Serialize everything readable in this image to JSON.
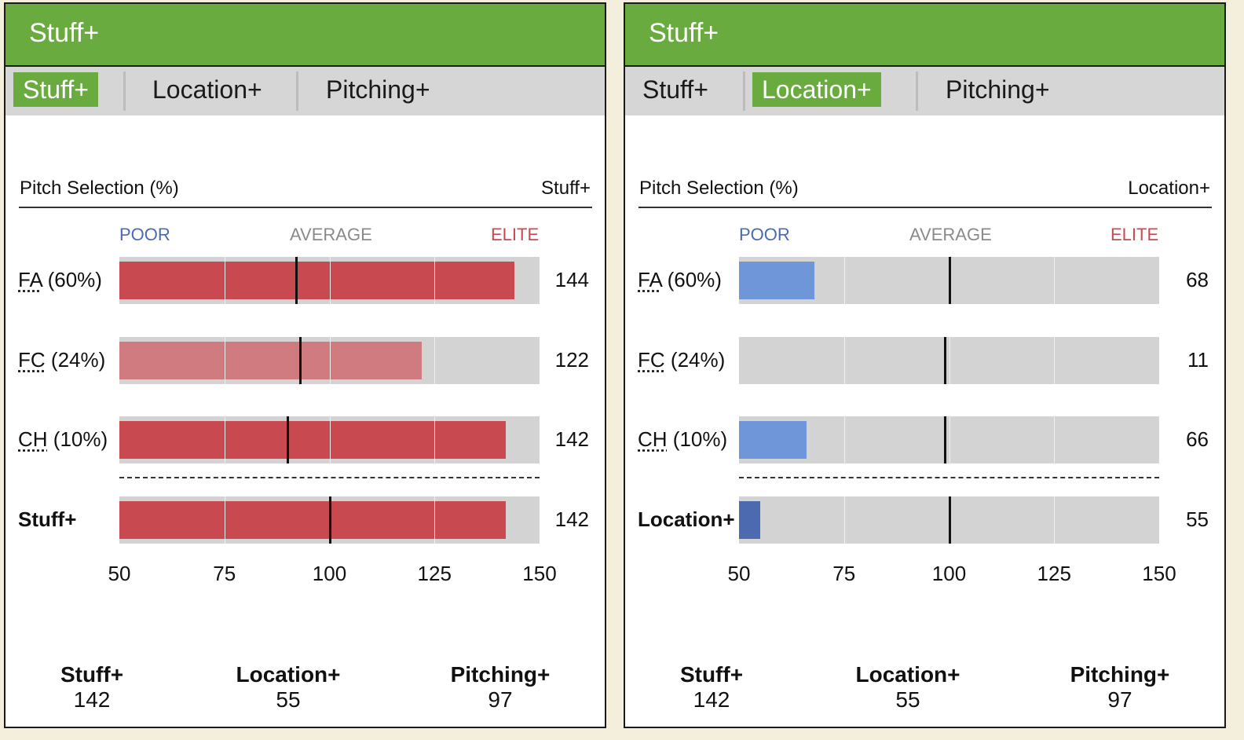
{
  "panels": [
    {
      "header_title": "Stuff+",
      "tabs": [
        {
          "label": "Stuff+",
          "active": true
        },
        {
          "label": "Location+",
          "active": false
        },
        {
          "label": "Pitching+",
          "active": false
        }
      ],
      "col_left": "Pitch Selection (%)",
      "col_right": "Stuff+",
      "scale": {
        "poor": "POOR",
        "average": "AVERAGE",
        "elite": "ELITE"
      },
      "ticks": [
        "50",
        "75",
        "100",
        "125",
        "150"
      ],
      "footer": [
        {
          "name": "Stuff+",
          "value": "142"
        },
        {
          "name": "Location+",
          "value": "55"
        },
        {
          "name": "Pitching+",
          "value": "97"
        }
      ]
    },
    {
      "header_title": "Stuff+",
      "tabs": [
        {
          "label": "Stuff+",
          "active": false
        },
        {
          "label": "Location+",
          "active": true
        },
        {
          "label": "Pitching+",
          "active": false
        }
      ],
      "col_left": "Pitch Selection (%)",
      "col_right": "Location+",
      "scale": {
        "poor": "POOR",
        "average": "AVERAGE",
        "elite": "ELITE"
      },
      "ticks": [
        "50",
        "75",
        "100",
        "125",
        "150"
      ],
      "footer": [
        {
          "name": "Stuff+",
          "value": "142"
        },
        {
          "name": "Location+",
          "value": "55"
        },
        {
          "name": "Pitching+",
          "value": "97"
        }
      ]
    }
  ],
  "chart_data": [
    {
      "type": "bar",
      "orientation": "horizontal",
      "xlim": [
        50,
        150
      ],
      "xticks": [
        50,
        75,
        100,
        125,
        150
      ],
      "rows": [
        {
          "abbr": "FA",
          "pct": "(60%)",
          "value": 144,
          "marker": 92,
          "color": "#c84a50"
        },
        {
          "abbr": "FC",
          "pct": "(24%)",
          "value": 122,
          "marker": 93,
          "color": "#cf7b80"
        },
        {
          "abbr": "CH",
          "pct": "(10%)",
          "value": 142,
          "marker": 90,
          "color": "#c84a50"
        }
      ],
      "total": {
        "label": "Stuff+",
        "value": 142,
        "marker": 100,
        "color": "#c84a50"
      }
    },
    {
      "type": "bar",
      "orientation": "horizontal",
      "xlim": [
        50,
        150
      ],
      "xticks": [
        50,
        75,
        100,
        125,
        150
      ],
      "rows": [
        {
          "abbr": "FA",
          "pct": "(60%)",
          "value": 68,
          "marker": 100,
          "color": "#6f96d8"
        },
        {
          "abbr": "FC",
          "pct": "(24%)",
          "value": 11,
          "marker": 99,
          "color": "#6f96d8"
        },
        {
          "abbr": "CH",
          "pct": "(10%)",
          "value": 66,
          "marker": 99,
          "color": "#6f96d8"
        }
      ],
      "total": {
        "label": "Location+",
        "value": 55,
        "marker": 100,
        "color": "#4b6aaf"
      }
    }
  ]
}
